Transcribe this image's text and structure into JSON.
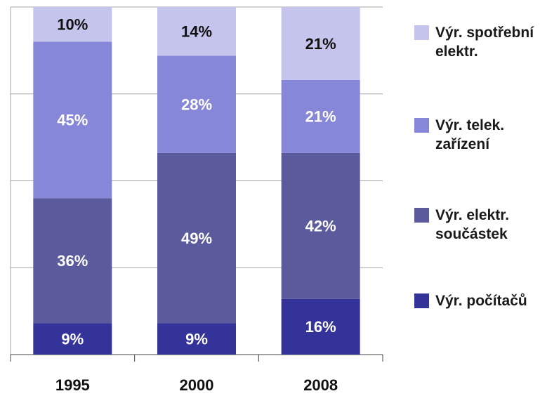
{
  "chart_data": {
    "type": "stacked_bar",
    "categories": [
      "1995",
      "2000",
      "2008"
    ],
    "series": [
      {
        "name": "Výr. počítačů",
        "color": "#333399",
        "values": [
          9,
          9,
          16
        ],
        "value_labels": [
          "9%",
          "9%",
          "16%"
        ]
      },
      {
        "name": "Výr. elektr. součástek",
        "color": "#5a5a9c",
        "values": [
          36,
          49,
          42
        ],
        "value_labels": [
          "36%",
          "49%",
          "42%"
        ]
      },
      {
        "name": "Výr. telek. zařízení",
        "color": "#8787d9",
        "values": [
          45,
          28,
          21
        ],
        "value_labels": [
          "45%",
          "28%",
          "21%"
        ]
      },
      {
        "name": "Výr. spotřební elektr.",
        "color": "#c4c4ec",
        "values": [
          10,
          14,
          21
        ],
        "value_labels": [
          "10%",
          "14%",
          "21%"
        ]
      }
    ],
    "ylim": [
      0,
      100
    ],
    "yticks": [
      0,
      25,
      50,
      75,
      100
    ],
    "grid": true,
    "legend": "right"
  }
}
